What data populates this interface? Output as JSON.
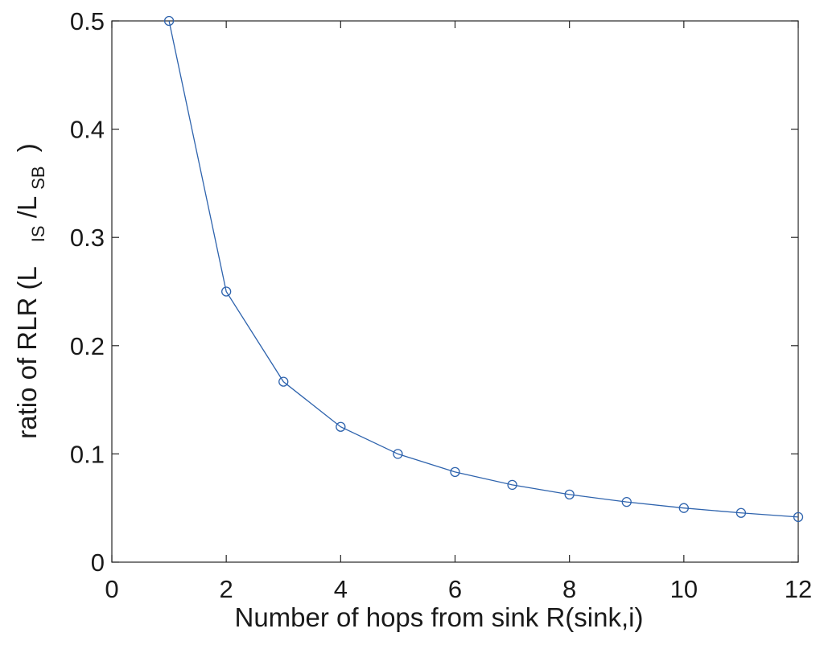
{
  "chart_data": {
    "type": "line",
    "xlabel": "Number of hops from sink R(sink,i)",
    "ylabel": {
      "prefix": "ratio of RLR (L",
      "sub1": "IS",
      "middle": "/L",
      "sub2": "SB",
      "suffix": ")"
    },
    "xlim": [
      0,
      12
    ],
    "ylim": [
      0,
      0.5
    ],
    "xticks": [
      0,
      2,
      4,
      6,
      8,
      10,
      12
    ],
    "yticks": [
      0,
      0.1,
      0.2,
      0.3,
      0.4,
      0.5
    ],
    "xtick_labels": [
      "0",
      "2",
      "4",
      "6",
      "8",
      "10",
      "12"
    ],
    "ytick_labels": [
      "0",
      "0.1",
      "0.2",
      "0.3",
      "0.4",
      "0.5"
    ],
    "grid": false,
    "series": [
      {
        "x": [
          1,
          2,
          3,
          4,
          5,
          6,
          7,
          8,
          9,
          10,
          11,
          12
        ],
        "y": [
          0.5,
          0.25,
          0.1667,
          0.125,
          0.1,
          0.0833,
          0.0714,
          0.0625,
          0.0556,
          0.05,
          0.0455,
          0.0417
        ],
        "color": "#2e63ad",
        "marker": "circle"
      }
    ]
  }
}
